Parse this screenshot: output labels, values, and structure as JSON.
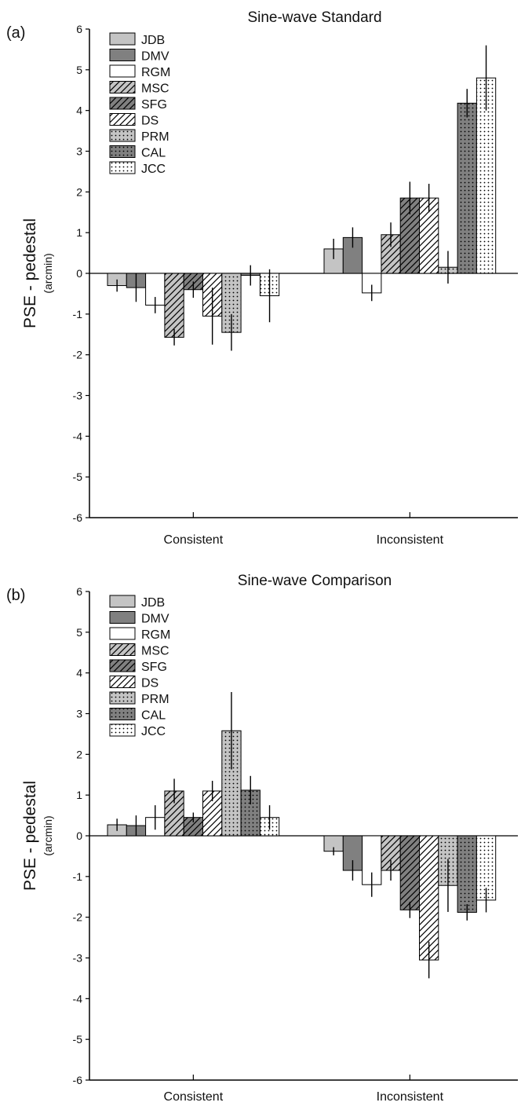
{
  "legend": [
    "JDB",
    "DMV",
    "RGM",
    "MSC",
    "SFG",
    "DS",
    "PRM",
    "CAL",
    "JCC"
  ],
  "styles": [
    {
      "fill": "#c4c4c4",
      "pattern": "none"
    },
    {
      "fill": "#808080",
      "pattern": "none"
    },
    {
      "fill": "#ffffff",
      "pattern": "none"
    },
    {
      "fill": "#c4c4c4",
      "pattern": "hatch"
    },
    {
      "fill": "#808080",
      "pattern": "hatch"
    },
    {
      "fill": "#ffffff",
      "pattern": "hatch"
    },
    {
      "fill": "#c4c4c4",
      "pattern": "dots"
    },
    {
      "fill": "#808080",
      "pattern": "dots"
    },
    {
      "fill": "#ffffff",
      "pattern": "dots"
    }
  ],
  "chart_data": [
    {
      "panel": "(a)",
      "type": "bar",
      "title": "Sine-wave Standard",
      "ylabel_main": "PSE  -  pedestal",
      "ylabel_unit": "(arcmin)",
      "ylim": [
        -6,
        6
      ],
      "yticks": [
        "-6",
        "-5",
        "-4",
        "-3",
        "-2",
        "-1",
        "0",
        "1",
        "2",
        "3",
        "4",
        "5",
        "6"
      ],
      "categories": [
        "Consistent",
        "Inconsistent"
      ],
      "series": [
        {
          "name": "JDB",
          "values": [
            -0.3,
            0.6
          ],
          "err": [
            0.15,
            0.25
          ]
        },
        {
          "name": "DMV",
          "values": [
            -0.35,
            0.88
          ],
          "err": [
            0.35,
            0.25
          ]
        },
        {
          "name": "RGM",
          "values": [
            -0.78,
            -0.48
          ],
          "err": [
            0.2,
            0.2
          ]
        },
        {
          "name": "MSC",
          "values": [
            -1.57,
            0.95
          ],
          "err": [
            0.2,
            0.3
          ]
        },
        {
          "name": "SFG",
          "values": [
            -0.4,
            1.85
          ],
          "err": [
            0.2,
            0.4
          ]
        },
        {
          "name": "DS",
          "values": [
            -1.05,
            1.85
          ],
          "err": [
            0.7,
            0.35
          ]
        },
        {
          "name": "PRM",
          "values": [
            -1.45,
            0.15
          ],
          "err": [
            0.45,
            0.4
          ]
        },
        {
          "name": "CAL",
          "values": [
            -0.05,
            4.18
          ],
          "err": [
            0.25,
            0.35
          ]
        },
        {
          "name": "JCC",
          "values": [
            -0.55,
            4.8
          ],
          "err": [
            0.65,
            0.8
          ]
        }
      ]
    },
    {
      "panel": "(b)",
      "type": "bar",
      "title": "Sine-wave Comparison",
      "ylabel_main": "PSE  -  pedestal",
      "ylabel_unit": "(arcmin)",
      "ylim": [
        -6,
        6
      ],
      "yticks": [
        "-6",
        "-5",
        "-4",
        "-3",
        "-2",
        "-1",
        "0",
        "1",
        "2",
        "3",
        "4",
        "5",
        "6"
      ],
      "categories": [
        "Consistent",
        "Inconsistent"
      ],
      "series": [
        {
          "name": "JDB",
          "values": [
            0.27,
            -0.38
          ],
          "err": [
            0.15,
            0.1
          ]
        },
        {
          "name": "DMV",
          "values": [
            0.25,
            -0.85
          ],
          "err": [
            0.25,
            0.25
          ]
        },
        {
          "name": "RGM",
          "values": [
            0.45,
            -1.2
          ],
          "err": [
            0.3,
            0.3
          ]
        },
        {
          "name": "MSC",
          "values": [
            1.1,
            -0.85
          ],
          "err": [
            0.3,
            0.25
          ]
        },
        {
          "name": "SFG",
          "values": [
            0.45,
            -1.82
          ],
          "err": [
            0.12,
            0.2
          ]
        },
        {
          "name": "DS",
          "values": [
            1.1,
            -3.05
          ],
          "err": [
            0.25,
            0.45
          ]
        },
        {
          "name": "PRM",
          "values": [
            2.58,
            -1.22
          ],
          "err": [
            0.95,
            0.65
          ]
        },
        {
          "name": "CAL",
          "values": [
            1.12,
            -1.88
          ],
          "err": [
            0.35,
            0.2
          ]
        },
        {
          "name": "JCC",
          "values": [
            0.45,
            -1.58
          ],
          "err": [
            0.3,
            0.3
          ]
        }
      ]
    }
  ]
}
